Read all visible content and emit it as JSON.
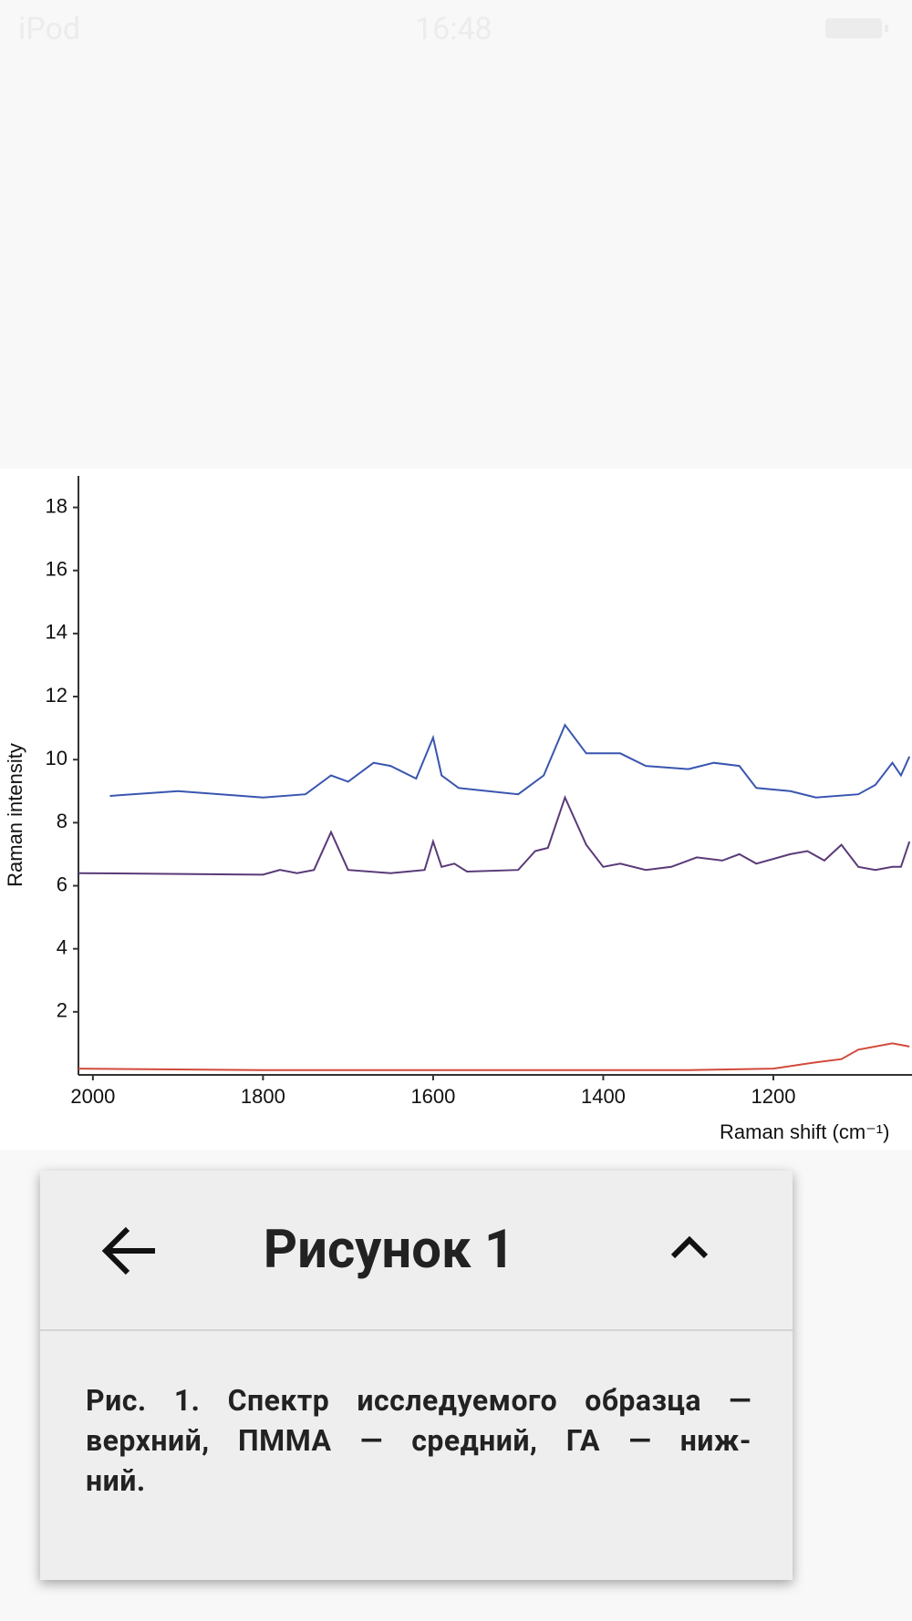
{
  "status_bar": {
    "carrier": "iPod",
    "time": "16:48"
  },
  "chart_data": {
    "type": "line",
    "xlabel": "Raman shift (cm⁻¹)",
    "ylabel": "Raman intensity",
    "xlim": [
      2017,
      1037
    ],
    "ylim": [
      0,
      19
    ],
    "xticks": [
      2000,
      1800,
      1600,
      1400,
      1200
    ],
    "yticks": [
      2,
      4,
      6,
      8,
      10,
      12,
      14,
      16,
      18
    ],
    "series": [
      {
        "color": "#3a55b0",
        "x": [
          1980,
          1900,
          1800,
          1750,
          1720,
          1700,
          1670,
          1650,
          1620,
          1600,
          1590,
          1570,
          1500,
          1470,
          1445,
          1420,
          1380,
          1350,
          1300,
          1270,
          1240,
          1220,
          1180,
          1150,
          1100,
          1080,
          1060,
          1050,
          1040
        ],
        "values": [
          8.85,
          9.0,
          8.8,
          8.9,
          9.5,
          9.3,
          9.9,
          9.8,
          9.4,
          10.7,
          9.5,
          9.1,
          8.9,
          9.5,
          11.1,
          10.2,
          10.2,
          9.8,
          9.7,
          9.9,
          9.8,
          9.1,
          9.0,
          8.8,
          8.9,
          9.2,
          9.9,
          9.5,
          10.1
        ]
      },
      {
        "color": "#5a3a78",
        "x": [
          2017,
          1800,
          1780,
          1760,
          1740,
          1720,
          1700,
          1650,
          1630,
          1610,
          1600,
          1590,
          1575,
          1560,
          1500,
          1480,
          1465,
          1445,
          1420,
          1400,
          1380,
          1350,
          1320,
          1290,
          1260,
          1240,
          1220,
          1180,
          1160,
          1140,
          1120,
          1100,
          1080,
          1060,
          1050,
          1040
        ],
        "values": [
          6.4,
          6.35,
          6.5,
          6.4,
          6.5,
          7.7,
          6.5,
          6.4,
          6.45,
          6.5,
          7.4,
          6.6,
          6.7,
          6.45,
          6.5,
          7.1,
          7.2,
          8.8,
          7.3,
          6.6,
          6.7,
          6.5,
          6.6,
          6.9,
          6.8,
          7.0,
          6.7,
          7.0,
          7.1,
          6.8,
          7.3,
          6.6,
          6.5,
          6.6,
          6.6,
          7.4
        ]
      },
      {
        "color": "#d24a3a",
        "x": [
          2017,
          1800,
          1500,
          1300,
          1200,
          1150,
          1120,
          1100,
          1060,
          1040
        ],
        "values": [
          0.2,
          0.15,
          0.15,
          0.15,
          0.2,
          0.4,
          0.5,
          0.8,
          1.0,
          0.9
        ]
      }
    ]
  },
  "panel": {
    "title": "Рисунок 1",
    "caption": [
      "Рис. 1. Спектр исследуемого образца —",
      "верхний, ПММА — средний, ГА — ниж-",
      "ний."
    ]
  }
}
